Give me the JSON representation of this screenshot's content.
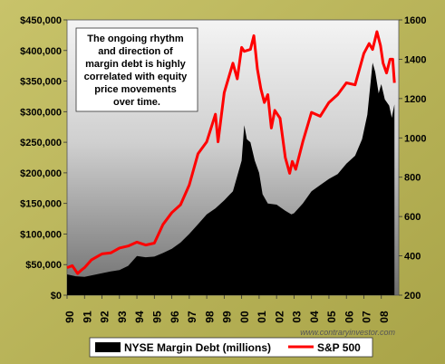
{
  "chart_data": {
    "type": "area",
    "title": "",
    "xlabel": "",
    "ylabel": "",
    "y2label": "",
    "x_categories": [
      "90",
      "91",
      "92",
      "93",
      "94",
      "95",
      "96",
      "97",
      "98",
      "99",
      "00",
      "01",
      "02",
      "03",
      "04",
      "05",
      "06",
      "07",
      "08"
    ],
    "ylim": [
      0,
      450000
    ],
    "y_ticks": [
      "$0",
      "$50,000",
      "$100,000",
      "$150,000",
      "$200,000",
      "$250,000",
      "$300,000",
      "$350,000",
      "$400,000",
      "$450,000"
    ],
    "y2lim": [
      200,
      1600
    ],
    "y2_ticks": [
      "200",
      "400",
      "600",
      "800",
      "1000",
      "1200",
      "1400",
      "1600"
    ],
    "series": [
      {
        "name": "NYSE Margin Debt (millions)",
        "kind": "area",
        "axis": "left",
        "color": "#000000",
        "points": [
          [
            1990.0,
            34000
          ],
          [
            1990.5,
            31000
          ],
          [
            1991.0,
            30000
          ],
          [
            1991.5,
            33000
          ],
          [
            1992.0,
            36000
          ],
          [
            1992.5,
            39000
          ],
          [
            1993.0,
            41000
          ],
          [
            1993.5,
            48000
          ],
          [
            1994.0,
            64000
          ],
          [
            1994.5,
            62000
          ],
          [
            1995.0,
            63000
          ],
          [
            1995.5,
            69000
          ],
          [
            1996.0,
            76000
          ],
          [
            1996.5,
            86000
          ],
          [
            1997.0,
            100000
          ],
          [
            1997.5,
            116000
          ],
          [
            1998.0,
            132000
          ],
          [
            1998.5,
            142000
          ],
          [
            1999.0,
            155000
          ],
          [
            1999.5,
            170000
          ],
          [
            2000.0,
            220000
          ],
          [
            2000.15,
            278000
          ],
          [
            2000.3,
            255000
          ],
          [
            2000.5,
            250000
          ],
          [
            2000.75,
            220000
          ],
          [
            2001.0,
            200000
          ],
          [
            2001.2,
            165000
          ],
          [
            2001.5,
            150000
          ],
          [
            2002.0,
            148000
          ],
          [
            2002.5,
            138000
          ],
          [
            2002.85,
            132000
          ],
          [
            2003.0,
            134000
          ],
          [
            2003.5,
            150000
          ],
          [
            2004.0,
            170000
          ],
          [
            2004.5,
            180000
          ],
          [
            2005.0,
            190000
          ],
          [
            2005.5,
            198000
          ],
          [
            2006.0,
            215000
          ],
          [
            2006.5,
            228000
          ],
          [
            2006.9,
            255000
          ],
          [
            2007.2,
            295000
          ],
          [
            2007.5,
            380000
          ],
          [
            2007.65,
            365000
          ],
          [
            2007.85,
            330000
          ],
          [
            2008.0,
            345000
          ],
          [
            2008.2,
            320000
          ],
          [
            2008.45,
            310000
          ],
          [
            2008.6,
            290000
          ],
          [
            2008.75,
            312000
          ]
        ]
      },
      {
        "name": "S&P 500",
        "kind": "line",
        "axis": "right",
        "color": "#ff0000",
        "points": [
          [
            1990.0,
            340
          ],
          [
            1990.3,
            350
          ],
          [
            1990.6,
            310
          ],
          [
            1990.85,
            330
          ],
          [
            1991.0,
            340
          ],
          [
            1991.4,
            380
          ],
          [
            1991.8,
            400
          ],
          [
            1992.0,
            410
          ],
          [
            1992.5,
            415
          ],
          [
            1993.0,
            440
          ],
          [
            1993.5,
            450
          ],
          [
            1994.0,
            470
          ],
          [
            1994.5,
            455
          ],
          [
            1995.0,
            465
          ],
          [
            1995.5,
            560
          ],
          [
            1996.0,
            620
          ],
          [
            1996.5,
            660
          ],
          [
            1997.0,
            760
          ],
          [
            1997.5,
            920
          ],
          [
            1998.0,
            980
          ],
          [
            1998.5,
            1120
          ],
          [
            1998.65,
            980
          ],
          [
            1999.0,
            1230
          ],
          [
            1999.5,
            1380
          ],
          [
            1999.75,
            1300
          ],
          [
            2000.0,
            1460
          ],
          [
            2000.15,
            1440
          ],
          [
            2000.5,
            1450
          ],
          [
            2000.7,
            1520
          ],
          [
            2000.9,
            1350
          ],
          [
            2001.1,
            1250
          ],
          [
            2001.3,
            1180
          ],
          [
            2001.5,
            1220
          ],
          [
            2001.7,
            1050
          ],
          [
            2001.9,
            1140
          ],
          [
            2002.2,
            1100
          ],
          [
            2002.5,
            900
          ],
          [
            2002.75,
            820
          ],
          [
            2002.9,
            880
          ],
          [
            2003.1,
            840
          ],
          [
            2003.5,
            980
          ],
          [
            2004.0,
            1130
          ],
          [
            2004.5,
            1110
          ],
          [
            2005.0,
            1180
          ],
          [
            2005.5,
            1220
          ],
          [
            2006.0,
            1280
          ],
          [
            2006.5,
            1270
          ],
          [
            2007.0,
            1430
          ],
          [
            2007.3,
            1480
          ],
          [
            2007.5,
            1450
          ],
          [
            2007.75,
            1540
          ],
          [
            2007.95,
            1470
          ],
          [
            2008.1,
            1380
          ],
          [
            2008.3,
            1330
          ],
          [
            2008.5,
            1400
          ],
          [
            2008.65,
            1400
          ],
          [
            2008.75,
            1280
          ]
        ]
      }
    ],
    "annotation": [
      "The ongoing rhythm",
      "and direction of",
      "margin debt is highly",
      "correlated with equity",
      "price movements",
      "over time."
    ],
    "credit": "www.contraryinvestor.com",
    "legend_position": "bottom",
    "grid": false,
    "colors": {
      "frame": "#b9b458",
      "plot_top": "#f2f2f2",
      "plot_bottom": "#7a7a7a",
      "margin_debt": "#000000",
      "sp500": "#ff0000"
    }
  }
}
